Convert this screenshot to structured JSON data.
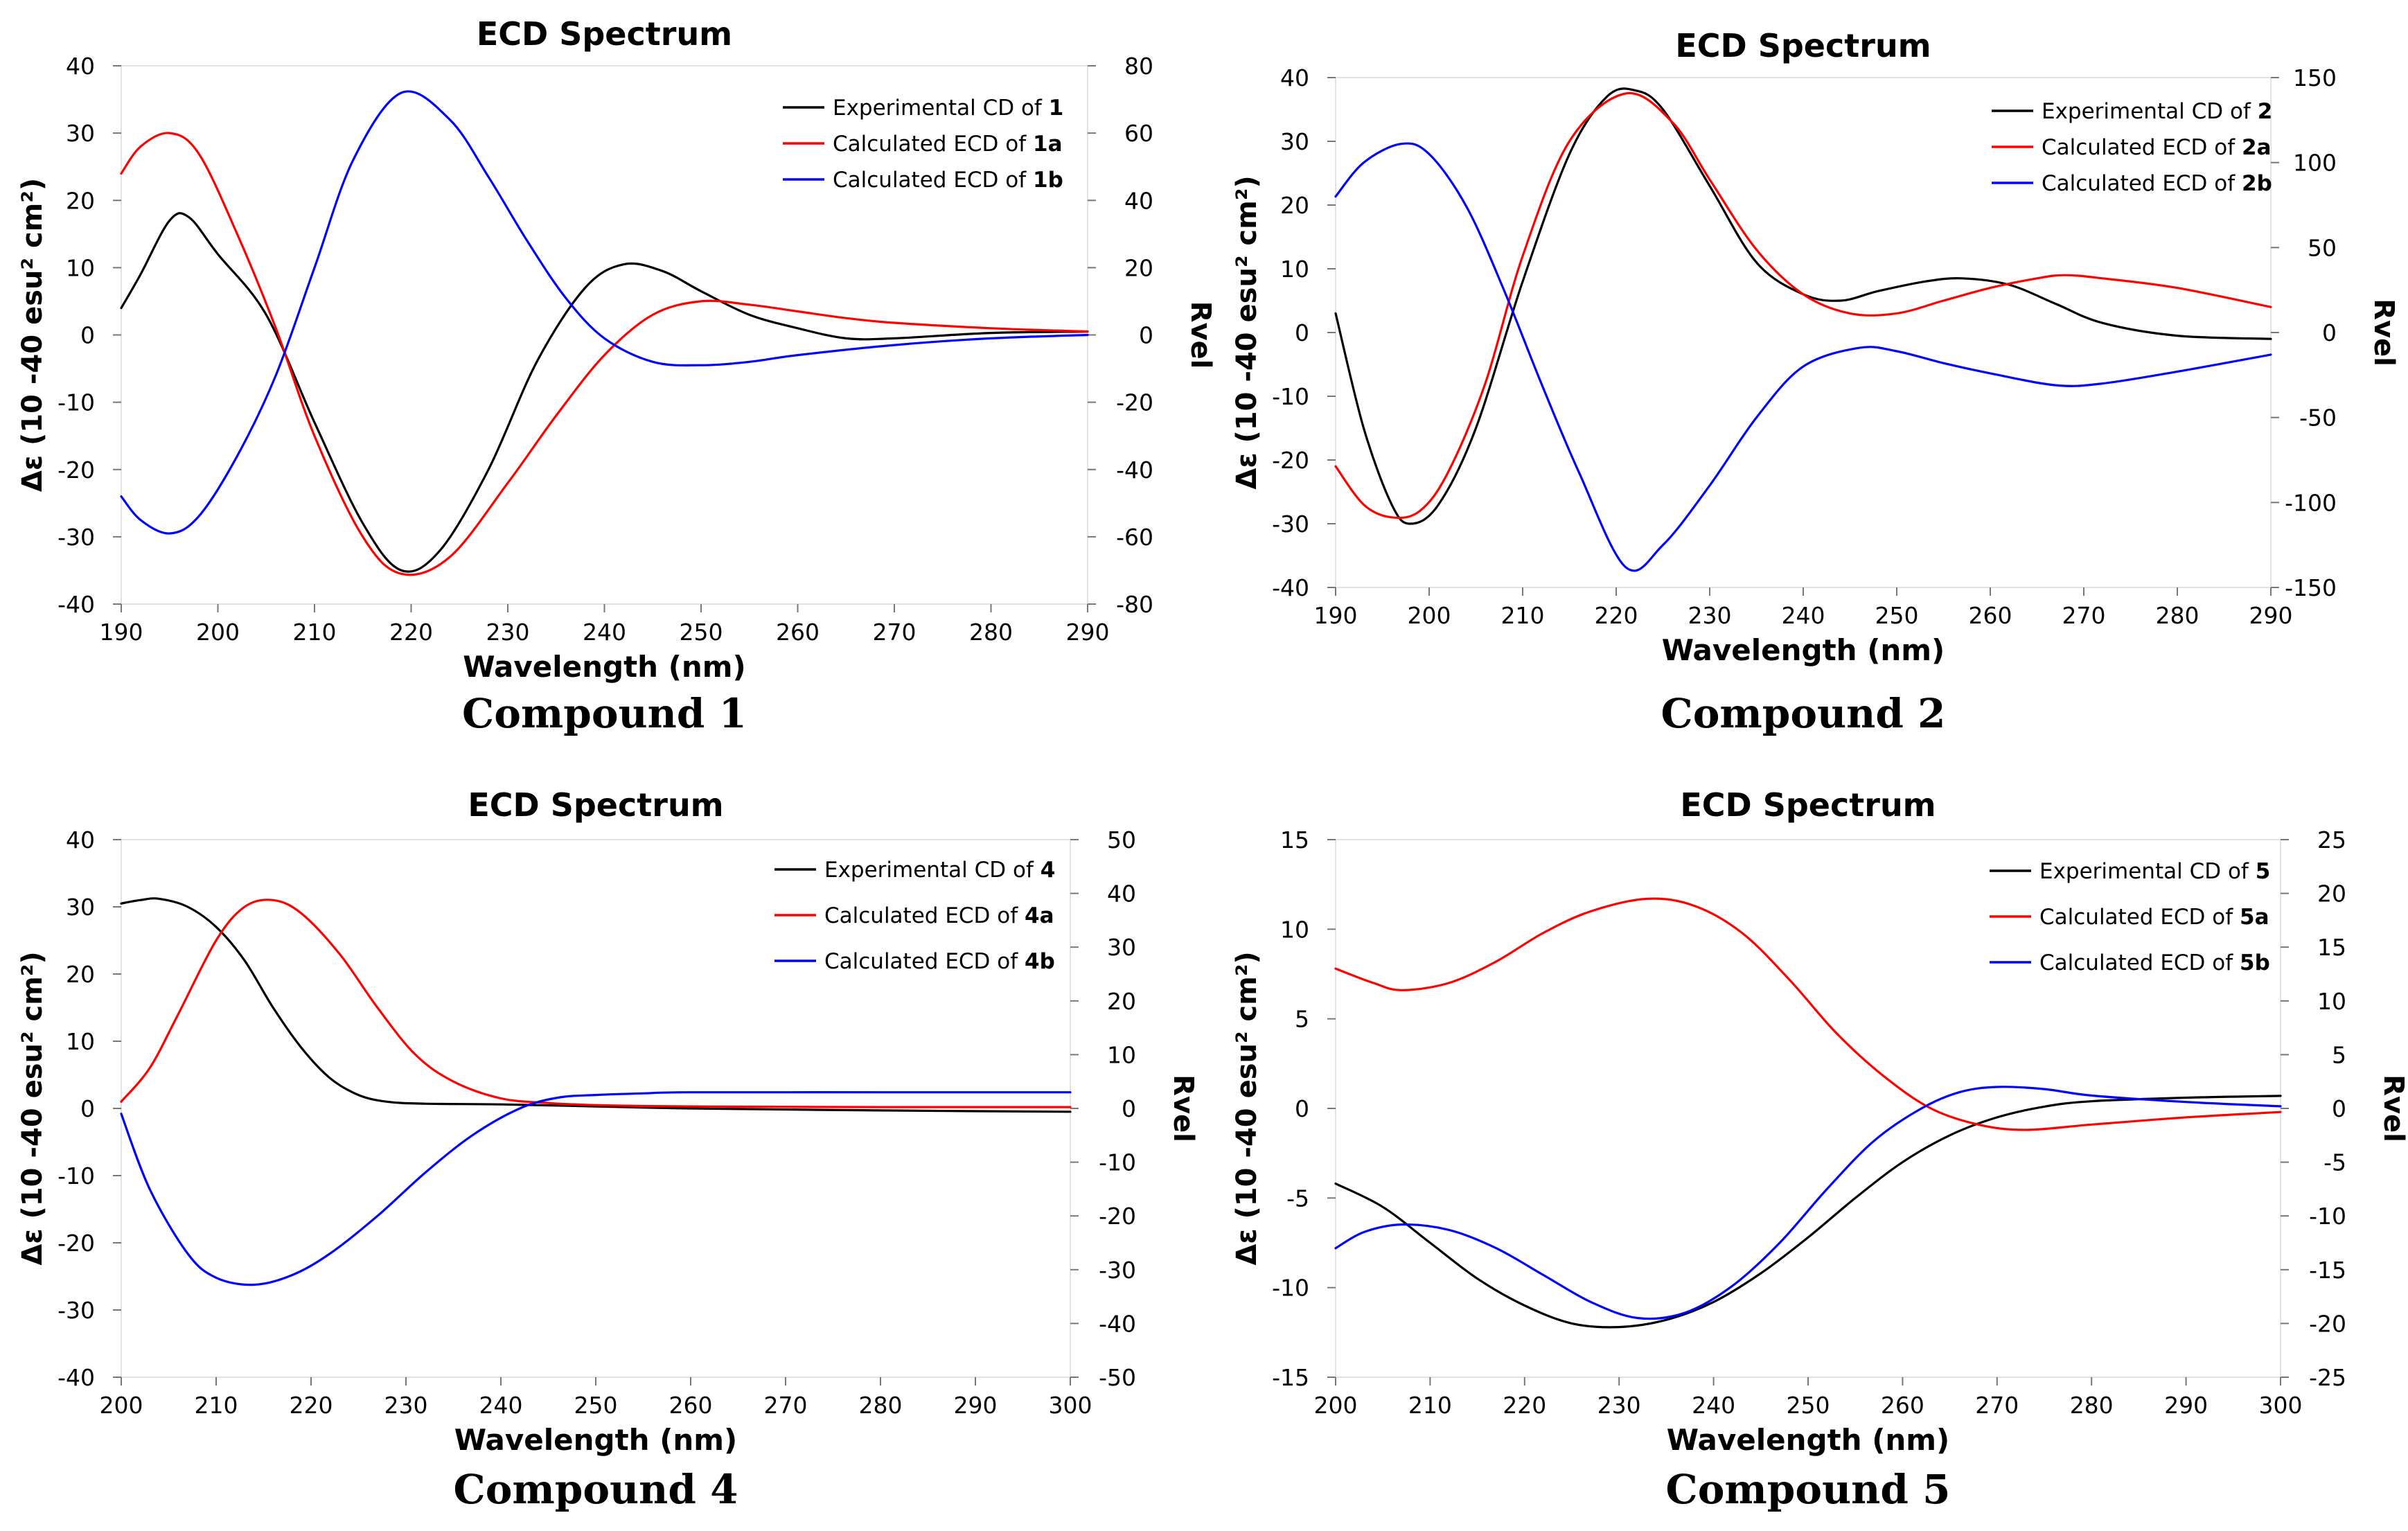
{
  "panels": [
    {
      "caption": "Compound 1",
      "chart_data": {
        "type": "line",
        "title": "ECD Spectrum",
        "xlabel": "Wavelength (nm)",
        "ylabel": "Δε (10 -40 esu² cm²)",
        "y2label": "Rvel",
        "xlim": [
          190,
          290
        ],
        "ylim": [
          -40,
          40
        ],
        "y2lim": [
          -80,
          80
        ],
        "xticks": [
          190,
          200,
          210,
          220,
          230,
          240,
          250,
          260,
          270,
          280,
          290
        ],
        "yticks": [
          -40,
          -30,
          -20,
          -10,
          0,
          10,
          20,
          30,
          40
        ],
        "y2ticks": [
          -80,
          -60,
          -40,
          -20,
          0,
          20,
          40,
          60,
          80
        ],
        "legend_position": "top-right",
        "series": [
          {
            "name": "Experimental CD of 1",
            "legend_prefix": "Experimental CD of ",
            "legend_bold": "1",
            "color": "#000000",
            "axis": "left",
            "x": [
              190,
              192,
              195,
              197,
              200,
              205,
              210,
              215,
              219,
              223,
              228,
              233,
              238,
              242,
              246,
              250,
              255,
              260,
              265,
              270,
              280,
              290
            ],
            "y": [
              4,
              9,
              17,
              17.5,
              12,
              3,
              -13,
              -28,
              -35,
              -32,
              -20,
              -4,
              7,
              10.5,
              9.5,
              6.5,
              3,
              1,
              -0.5,
              -0.5,
              0.3,
              0.5
            ]
          },
          {
            "name": "Calculated ECD of 1a",
            "legend_prefix": "Calculated ECD of ",
            "legend_bold": "1a",
            "color": "#ff0000",
            "axis": "left",
            "x": [
              190,
              192,
              195,
              198,
              202,
              206,
              210,
              215,
              219,
              224,
              230,
              235,
              240,
              245,
              250,
              255,
              260,
              265,
              270,
              280,
              290
            ],
            "y": [
              24,
              28,
              30,
              27,
              15,
              1,
              -15,
              -30,
              -35.5,
              -33,
              -22,
              -12,
              -3,
              3,
              5,
              4.5,
              3.5,
              2.5,
              1.8,
              1,
              0.5
            ]
          },
          {
            "name": "Calculated ECD of 1b",
            "legend_prefix": "Calculated ECD of ",
            "legend_bold": "1b",
            "color": "#0000ff",
            "axis": "right",
            "x": [
              190,
              192,
              195,
              198,
              202,
              206,
              210,
              214,
              219,
              224,
              228,
              232,
              236,
              240,
              245,
              250,
              255,
              260,
              270,
              280,
              290
            ],
            "y": [
              -48,
              -55,
              -59,
              -54,
              -36,
              -12,
              20,
              52,
              72,
              64,
              47,
              28,
              11,
              -1,
              -8,
              -9,
              -8,
              -6,
              -3,
              -1,
              0
            ]
          }
        ]
      }
    },
    {
      "caption": "Compound 2",
      "chart_data": {
        "type": "line",
        "title": "ECD Spectrum",
        "xlabel": "Wavelength (nm)",
        "ylabel": "Δε (10 -40 esu² cm²)",
        "y2label": "Rvel",
        "xlim": [
          190,
          290
        ],
        "ylim": [
          -40,
          40
        ],
        "y2lim": [
          -150,
          150
        ],
        "xticks": [
          190,
          200,
          210,
          220,
          230,
          240,
          250,
          260,
          270,
          280,
          290
        ],
        "yticks": [
          -40,
          -30,
          -20,
          -10,
          0,
          10,
          20,
          30,
          40
        ],
        "y2ticks": [
          -150,
          -100,
          -50,
          0,
          50,
          100,
          150
        ],
        "legend_position": "top-right",
        "series": [
          {
            "name": "Experimental CD of 2",
            "legend_prefix": "Experimental CD of ",
            "legend_bold": "2",
            "color": "#000000",
            "axis": "left",
            "x": [
              190,
              193,
              196,
              198,
              201,
              205,
              210,
              215,
              219,
              222,
              225,
              230,
              235,
              240,
              244,
              248,
              253,
              257,
              262,
              267,
              272,
              280,
              290
            ],
            "y": [
              3,
              -15,
              -27,
              -30,
              -27,
              -15,
              8,
              28,
              37,
              38,
              35,
              23,
              11,
              6,
              5,
              6.5,
              8,
              8.5,
              7.5,
              4.5,
              1.5,
              -0.5,
              -1
            ]
          },
          {
            "name": "Calculated ECD of 2a",
            "legend_prefix": "Calculated ECD of ",
            "legend_bold": "2a",
            "color": "#ff0000",
            "axis": "left",
            "x": [
              190,
              193,
              196,
              199,
              202,
              206,
              210,
              215,
              221,
              226,
              230,
              235,
              240,
              245,
              250,
              255,
              260,
              265,
              268,
              272,
              280,
              290
            ],
            "y": [
              -21,
              -27,
              -29,
              -28,
              -22,
              -8,
              12,
              30,
              37.5,
              33,
              24,
              13,
              6,
              3,
              3,
              5,
              7,
              8.5,
              9,
              8.5,
              7,
              4
            ]
          },
          {
            "name": "Calculated ECD of 2b",
            "legend_prefix": "Calculated ECD of ",
            "legend_bold": "2b",
            "color": "#0000ff",
            "axis": "right",
            "x": [
              190,
              193,
              197,
              200,
              204,
              208,
              212,
              216,
              221,
              225,
              230,
              235,
              240,
              246,
              250,
              255,
              260,
              267,
              272,
              280,
              290
            ],
            "y": [
              80,
              100,
              111,
              105,
              74,
              25,
              -30,
              -82,
              -138,
              -125,
              -90,
              -50,
              -20,
              -9,
              -11,
              -18,
              -24,
              -31,
              -30,
              -23,
              -13
            ]
          }
        ]
      }
    },
    {
      "caption": "Compound 4",
      "chart_data": {
        "type": "line",
        "title": "ECD Spectrum",
        "xlabel": "Wavelength (nm)",
        "ylabel": "Δε (10 -40 esu² cm²)",
        "y2label": "Rvel",
        "xlim": [
          200,
          300
        ],
        "ylim": [
          -40,
          40
        ],
        "y2lim": [
          -50,
          50
        ],
        "xticks": [
          200,
          210,
          220,
          230,
          240,
          250,
          260,
          270,
          280,
          290,
          300
        ],
        "yticks": [
          -40,
          -30,
          -20,
          -10,
          0,
          10,
          20,
          30,
          40
        ],
        "y2ticks": [
          -50,
          -40,
          -30,
          -20,
          -10,
          0,
          10,
          20,
          30,
          40,
          50
        ],
        "legend_position": "top-right",
        "series": [
          {
            "name": "Experimental CD of 4",
            "legend_prefix": "Experimental CD of ",
            "legend_bold": "4",
            "color": "#000000",
            "axis": "left",
            "x": [
              200,
              202,
              204,
              207,
              210,
              213,
              216,
              219,
              222,
              225,
              228,
              232,
              240,
              250,
              260,
              280,
              300
            ],
            "y": [
              30.5,
              31,
              31.2,
              30,
              27,
              22,
              15,
              9,
              4.5,
              2,
              1,
              0.7,
              0.6,
              0.3,
              0,
              -0.3,
              -0.5
            ]
          },
          {
            "name": "Calculated ECD of 4a",
            "legend_prefix": "Calculated ECD of ",
            "legend_bold": "4a",
            "color": "#ff0000",
            "axis": "left",
            "x": [
              200,
              203,
              206,
              210,
              213,
              216,
              219,
              223,
              227,
              231,
              235,
              240,
              245,
              250,
              260,
              280,
              300
            ],
            "y": [
              1,
              6,
              14,
              25,
              30,
              31,
              29,
              23,
              15,
              8,
              4,
              1.5,
              0.8,
              0.5,
              0.3,
              0.2,
              0.2
            ]
          },
          {
            "name": "Calculated ECD of 4b",
            "legend_prefix": "Calculated ECD of ",
            "legend_bold": "4b",
            "color": "#0000ff",
            "axis": "right",
            "x": [
              200,
              203,
              207,
              210,
              214,
              218,
              222,
              227,
              232,
              237,
              242,
              246,
              250,
              255,
              260,
              280,
              300
            ],
            "y": [
              -1,
              -15,
              -27,
              -31.5,
              -32.8,
              -31,
              -27,
              -20,
              -12,
              -5,
              0,
              2,
              2.5,
              2.8,
              3,
              3,
              3
            ]
          }
        ]
      }
    },
    {
      "caption": "Compound 5",
      "chart_data": {
        "type": "line",
        "title": "ECD Spectrum",
        "xlabel": "Wavelength (nm)",
        "ylabel": "Δε (10 -40 esu² cm²)",
        "y2label": "Rvel",
        "xlim": [
          200,
          300
        ],
        "ylim": [
          -15,
          15
        ],
        "y2lim": [
          -25,
          25
        ],
        "xticks": [
          200,
          210,
          220,
          230,
          240,
          250,
          260,
          270,
          280,
          290,
          300
        ],
        "yticks": [
          -15,
          -10,
          -5,
          0,
          5,
          10,
          15
        ],
        "y2ticks": [
          -25,
          -20,
          -15,
          -10,
          -5,
          0,
          5,
          10,
          15,
          20,
          25
        ],
        "legend_position": "top-right",
        "series": [
          {
            "name": "Experimental CD of 5",
            "legend_prefix": "Experimental CD of ",
            "legend_bold": "5",
            "color": "#000000",
            "axis": "left",
            "x": [
              200,
              205,
              210,
              215,
              220,
              225,
              230,
              235,
              240,
              245,
              250,
              255,
              260,
              265,
              270,
              275,
              280,
              290,
              300
            ],
            "y": [
              -4.2,
              -5.5,
              -7.5,
              -9.5,
              -11,
              -12,
              -12.2,
              -11.8,
              -10.8,
              -9.2,
              -7.2,
              -5,
              -3,
              -1.5,
              -0.5,
              0.1,
              0.4,
              0.6,
              0.7
            ]
          },
          {
            "name": "Calculated ECD of 5a",
            "legend_prefix": "Calculated ECD of ",
            "legend_bold": "5a",
            "color": "#ff0000",
            "axis": "left",
            "x": [
              200,
              204,
              207,
              212,
              217,
              222,
              227,
              233,
              238,
              243,
              248,
              253,
              258,
              263,
              268,
              273,
              280,
              290,
              300
            ],
            "y": [
              7.8,
              7,
              6.6,
              7,
              8.2,
              9.8,
              11,
              11.7,
              11.3,
              9.8,
              7.2,
              4.2,
              1.8,
              0,
              -0.9,
              -1.2,
              -0.9,
              -0.5,
              -0.2
            ]
          },
          {
            "name": "Calculated ECD of 5b",
            "legend_prefix": "Calculated ECD of ",
            "legend_bold": "5b",
            "color": "#0000ff",
            "axis": "right",
            "x": [
              200,
              203,
              207,
              212,
              217,
              222,
              227,
              232,
              237,
              242,
              247,
              252,
              257,
              262,
              266,
              270,
              275,
              280,
              290,
              300
            ],
            "y": [
              -13,
              -11.5,
              -10.8,
              -11.3,
              -13,
              -15.5,
              -18,
              -19.5,
              -19,
              -16.5,
              -12.5,
              -7.5,
              -3,
              0,
              1.5,
              2,
              1.8,
              1.2,
              0.6,
              0.2
            ]
          }
        ]
      }
    }
  ]
}
